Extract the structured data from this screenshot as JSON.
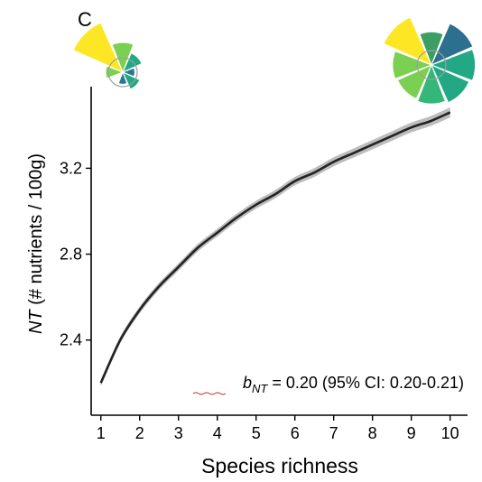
{
  "panel_label": "C",
  "chart_data": {
    "type": "line",
    "xlabel": "Species richness",
    "ylabel_italic": "NT",
    "ylabel_rest": " (# nutrients / 100g)",
    "xlim": [
      0.75,
      10.45
    ],
    "ylim": [
      2.05,
      3.58
    ],
    "x_ticks": [
      1,
      2,
      3,
      4,
      5,
      6,
      7,
      8,
      9,
      10
    ],
    "x_tick_labels": [
      "1",
      "2",
      "3",
      "4",
      "5",
      "6",
      "7",
      "8",
      "9",
      "10"
    ],
    "y_ticks": [
      2.4,
      2.8,
      3.2
    ],
    "y_tick_labels": [
      "2.4",
      "2.8",
      "3.2"
    ],
    "grid": false,
    "series": [
      {
        "x": [
          1,
          1.5,
          2,
          2.5,
          3,
          3.5,
          4,
          4.5,
          5,
          5.5,
          6,
          6.5,
          7,
          7.5,
          8,
          8.5,
          9,
          9.5,
          10
        ],
        "y": [
          2.2,
          2.4,
          2.54,
          2.65,
          2.74,
          2.83,
          2.9,
          2.97,
          3.03,
          3.08,
          3.14,
          3.18,
          3.23,
          3.27,
          3.31,
          3.35,
          3.39,
          3.42,
          3.46
        ],
        "ci_halfwidth": 0.015,
        "color": "#222222",
        "ci_color": "#bdbdbd"
      }
    ],
    "annotation": {
      "symbol": "b",
      "subscript": "NT",
      "text": " = 0.20 (95% CI: 0.20-0.21)"
    }
  },
  "glyphs": [
    {
      "name": "low-richness-glyph",
      "sectors": [
        {
          "color": "#fde725",
          "value": 1.0
        },
        {
          "color": "#7ad151",
          "value": 0.3
        },
        {
          "color": "#22a884",
          "value": 0.15
        },
        {
          "color": "#2a788e",
          "value": 0.05
        },
        {
          "color": "#22a884",
          "value": 0.12
        },
        {
          "color": "#2a788e",
          "value": 0.05
        },
        {
          "color": "#414487",
          "value": 0.0
        },
        {
          "color": "#7ad151",
          "value": 0.1
        }
      ]
    },
    {
      "name": "high-richness-glyph",
      "sectors": [
        {
          "color": "#fde725",
          "value": 1.0
        },
        {
          "color": "#3b9f63",
          "value": 0.4
        },
        {
          "color": "#2d6f8e",
          "value": 0.75
        },
        {
          "color": "#22a884",
          "value": 0.7
        },
        {
          "color": "#22a884",
          "value": 0.62
        },
        {
          "color": "#35b779",
          "value": 0.55
        },
        {
          "color": "#7ad151",
          "value": 0.5
        },
        {
          "color": "#7ad151",
          "value": 0.55
        }
      ]
    }
  ],
  "colors": {
    "axis": "#000000",
    "line": "#222222",
    "ribbon": "#bdbdbd",
    "annotation_underline": "#d62728"
  }
}
